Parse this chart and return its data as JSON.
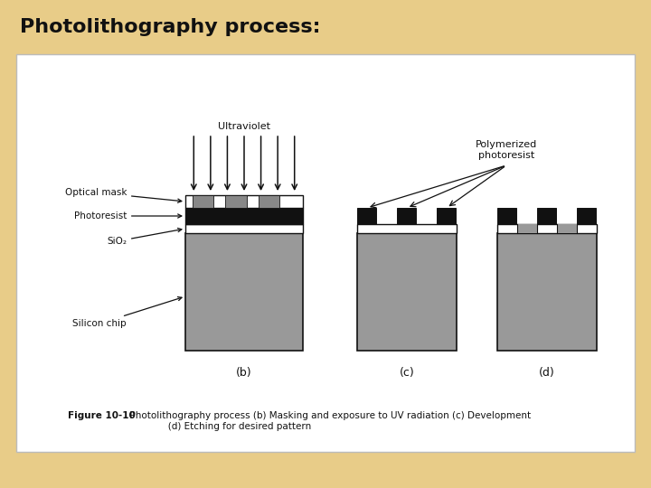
{
  "title": "Photolithography process:",
  "background_outer": "#e8cc88",
  "background_inner": "#ffffff",
  "title_fontsize": 16,
  "title_fontweight": "bold",
  "title_color": "#111111",
  "figure_caption_bold": "Figure 10-10",
  "figure_caption_rest": "  Photolithography process (b) Masking and exposure to UV radiation (c) Development\n               (d) Etching for desired pattern",
  "labels": {
    "optical_mask": "Optical mask",
    "photoresist": "Photoresist",
    "sio2": "SiO₂",
    "silicon_chip": "Silicon chip",
    "ultraviolet": "Ultraviolet",
    "polymerized": "Polymerized\nphotoresist",
    "b": "(b)",
    "c": "(c)",
    "d": "(d)"
  },
  "colors": {
    "black": "#111111",
    "chip_gray": "#999999",
    "sio2_white": "#ffffff",
    "mask_gray": "#888888",
    "outline": "#111111"
  }
}
